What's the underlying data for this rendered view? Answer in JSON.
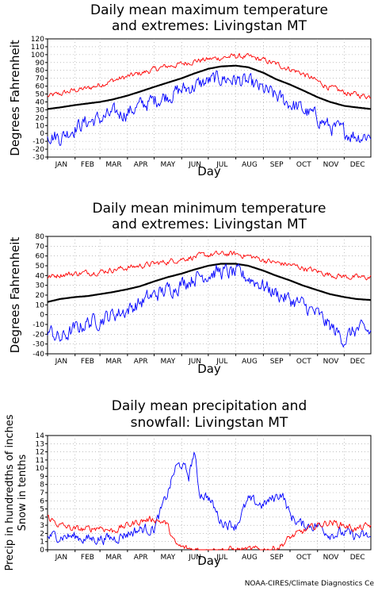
{
  "footer": "NOAA-CIRES/Climate Diagnostics Ce",
  "months": [
    "JAN",
    "FEB",
    "MAR",
    "APR",
    "MAY",
    "JUN",
    "JUL",
    "AUG",
    "SEP",
    "OCT",
    "NOV",
    "DEC"
  ],
  "colors": {
    "mean": "#000000",
    "max_extreme": "#ff0000",
    "min_extreme": "#0000ff",
    "precip": "#0000ff",
    "snow": "#ff0000",
    "grid": "#999999"
  },
  "chart_data": [
    {
      "type": "line",
      "title": [
        "Daily mean maximum temperature",
        "and extremes: Livingstan MT"
      ],
      "xlabel": "Day",
      "ylabel": "Degrees Fahrenheit",
      "ylim": [
        -30,
        120
      ],
      "yticks": [
        -30,
        -20,
        -10,
        0,
        10,
        20,
        30,
        40,
        50,
        60,
        70,
        80,
        90,
        100,
        110,
        120
      ],
      "grid": true,
      "x_days": [
        1,
        15,
        32,
        46,
        60,
        74,
        91,
        105,
        121,
        135,
        152,
        166,
        182,
        196,
        213,
        227,
        244,
        258,
        274,
        288,
        305,
        319,
        335,
        349,
        365
      ],
      "series": [
        {
          "role": "mean",
          "values": [
            31,
            33,
            36,
            38,
            40,
            43,
            48,
            53,
            59,
            64,
            70,
            76,
            82,
            85,
            86,
            84,
            77,
            69,
            62,
            55,
            46,
            40,
            35,
            33,
            31
          ]
        },
        {
          "role": "max_extreme",
          "values": [
            47,
            50,
            55,
            57,
            62,
            67,
            72,
            76,
            81,
            85,
            88,
            92,
            94,
            96,
            98,
            97,
            93,
            88,
            82,
            76,
            66,
            58,
            52,
            49,
            47
          ]
        },
        {
          "role": "min_extreme",
          "values": [
            0,
            -5,
            8,
            15,
            18,
            24,
            27,
            35,
            42,
            48,
            55,
            60,
            66,
            70,
            68,
            64,
            55,
            47,
            38,
            30,
            20,
            8,
            2,
            -3,
            -2
          ]
        }
      ]
    },
    {
      "type": "line",
      "title": [
        "Daily mean minimum temperature",
        "and extremes: Livingstan MT"
      ],
      "xlabel": "Day",
      "ylabel": "Degrees Fahrenheit",
      "ylim": [
        -40,
        80
      ],
      "yticks": [
        -40,
        -30,
        -20,
        -10,
        0,
        10,
        20,
        30,
        40,
        50,
        60,
        70,
        80
      ],
      "grid": true,
      "x_days": [
        1,
        15,
        32,
        46,
        60,
        74,
        91,
        105,
        121,
        135,
        152,
        166,
        182,
        196,
        213,
        227,
        244,
        258,
        274,
        288,
        305,
        319,
        335,
        349,
        365
      ],
      "series": [
        {
          "role": "mean",
          "values": [
            13,
            16,
            18,
            19,
            21,
            23,
            26,
            29,
            34,
            38,
            42,
            46,
            50,
            52,
            52,
            50,
            45,
            40,
            35,
            30,
            25,
            21,
            18,
            16,
            15
          ]
        },
        {
          "role": "max_extreme",
          "values": [
            38,
            41,
            42,
            43,
            44,
            46,
            48,
            50,
            52,
            54,
            57,
            59,
            61,
            62,
            62,
            60,
            56,
            53,
            51,
            48,
            44,
            41,
            39,
            38,
            38
          ]
        },
        {
          "role": "min_extreme",
          "values": [
            -15,
            -25,
            -15,
            -8,
            -5,
            0,
            5,
            12,
            20,
            25,
            32,
            38,
            42,
            44,
            42,
            38,
            30,
            22,
            15,
            10,
            0,
            -12,
            -25,
            -15,
            -18
          ]
        }
      ]
    },
    {
      "type": "line",
      "title": [
        "Daily mean precipitation and",
        "snowfall: Livingstan MT"
      ],
      "xlabel": "Day",
      "ylabel": [
        "Precip in hundredths of inches",
        "Snow in tenths"
      ],
      "ylim": [
        0,
        14
      ],
      "yticks": [
        0,
        1,
        2,
        3,
        4,
        5,
        6,
        7,
        8,
        9,
        10,
        11,
        12,
        13,
        14
      ],
      "grid": true,
      "x_days": [
        1,
        15,
        32,
        46,
        60,
        74,
        91,
        105,
        121,
        135,
        145,
        152,
        160,
        166,
        172,
        182,
        196,
        213,
        227,
        244,
        258,
        265,
        274,
        288,
        305,
        319,
        335,
        349,
        365
      ],
      "series": [
        {
          "role": "precip",
          "values": [
            1.6,
            1.7,
            1.6,
            1.3,
            1.4,
            1.4,
            2.0,
            2.5,
            2.6,
            6.5,
            10.0,
            10.5,
            9.0,
            12.0,
            7.0,
            6.5,
            3.5,
            3.0,
            6.0,
            5.5,
            6.5,
            7.0,
            4.2,
            3.0,
            3.0,
            2.0,
            2.0,
            1.7,
            1.5
          ]
        },
        {
          "role": "snow",
          "values": [
            4.0,
            3.0,
            2.5,
            2.5,
            2.8,
            2.3,
            3.0,
            3.5,
            3.8,
            3.2,
            0.6,
            0.3,
            0.1,
            0.05,
            0.0,
            0.0,
            0.0,
            0.0,
            0.0,
            0.0,
            0.2,
            0.6,
            1.5,
            2.2,
            3.0,
            3.4,
            3.0,
            2.5,
            3.0
          ]
        }
      ]
    }
  ]
}
